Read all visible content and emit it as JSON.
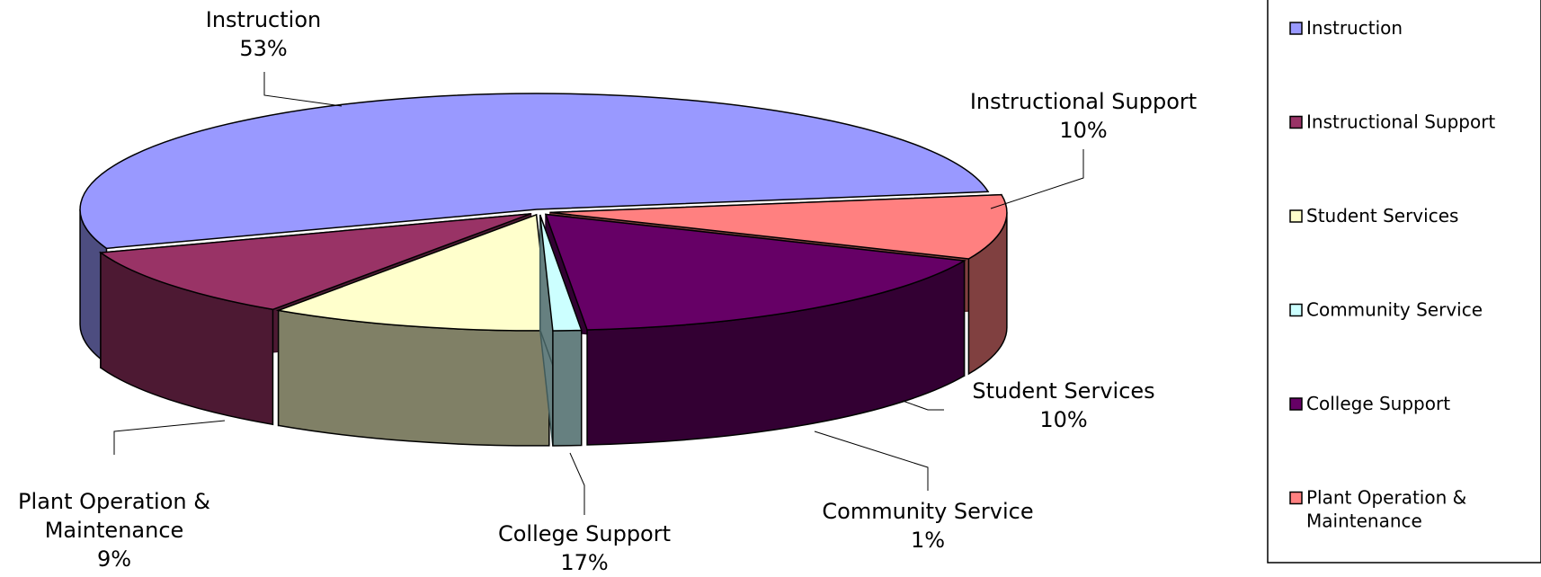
{
  "chart_data": {
    "type": "pie",
    "style": "3d-exploded",
    "title": "",
    "legend_position": "right",
    "slices": [
      {
        "name": "Instruction",
        "value": 53,
        "value_label": "53%",
        "label_lines": [
          "Instruction"
        ],
        "legend_lines": [
          "Instruction"
        ],
        "top": "#9999ff",
        "side": "#4d4d80",
        "edge": "#3a3a70"
      },
      {
        "name": "Instructional Support",
        "value": 10,
        "value_label": "10%",
        "label_lines": [
          "Instructional Support"
        ],
        "legend_lines": [
          "Instructional Support"
        ],
        "top": "#993366",
        "side": "#4d1933",
        "edge": "#3a1026"
      },
      {
        "name": "Student Services",
        "value": 10,
        "value_label": "10%",
        "label_lines": [
          "Student Services"
        ],
        "legend_lines": [
          "Student Services"
        ],
        "top": "#ffffcc",
        "side": "#808066",
        "edge": "#5a5a40"
      },
      {
        "name": "Community Service",
        "value": 1,
        "value_label": "1%",
        "label_lines": [
          "Community Service"
        ],
        "legend_lines": [
          "Community Service"
        ],
        "top": "#ccffff",
        "side": "#668080",
        "edge": "#405a5a"
      },
      {
        "name": "College Support",
        "value": 17,
        "value_label": "17%",
        "label_lines": [
          "College Support"
        ],
        "legend_lines": [
          "College Support"
        ],
        "top": "#660066",
        "side": "#330033",
        "edge": "#220022"
      },
      {
        "name": "Plant Operation & Maintenance",
        "value": 9,
        "value_label": "9%",
        "label_lines": [
          "Plant Operation &",
          "Maintenance"
        ],
        "legend_lines": [
          "Plant Operation &",
          "Maintenance"
        ],
        "top": "#ff8080",
        "side": "#804040",
        "edge": "#5a2a2a"
      }
    ]
  }
}
